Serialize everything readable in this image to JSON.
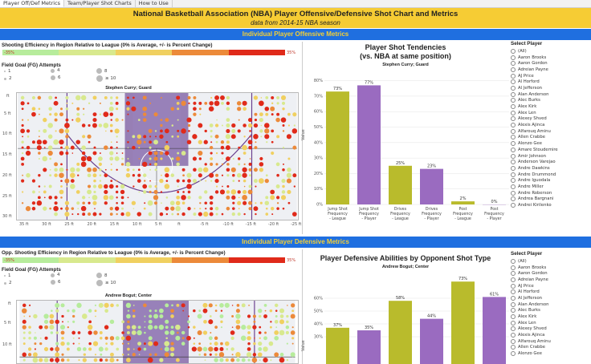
{
  "tabs": [
    {
      "label": "Player Off/Def Metrics",
      "active": true
    },
    {
      "label": "Team/Player Shot Charts",
      "active": false
    },
    {
      "label": "How to Use",
      "active": false
    }
  ],
  "header": {
    "title": "National Basketball Association (NBA) Player Offensive/Defensive Shot Chart and Metrics",
    "subtitle": "data from 2014-15 NBA season"
  },
  "offense": {
    "section_title": "Individual Player Offensive Metrics",
    "scale_title": "Shooting Efficiency in Region Relative to League (0% is Average, +/- is Percent Change)",
    "scale_min": "-35%",
    "scale_max": "35%",
    "attempts_title": "Field Goal (FG) Attempts",
    "attempt_legend": [
      "1",
      "2",
      "4",
      "6",
      "8",
      "≥ 10"
    ],
    "court_title": "Stephen Curry; Guard",
    "court_y_ticks": [
      "ft",
      "5 ft",
      "10 ft",
      "15 ft",
      "20 ft",
      "25 ft",
      "30 ft"
    ],
    "court_x_ticks": [
      "35 ft",
      "30 ft",
      "25 ft",
      "20 ft",
      "15 ft",
      "10 ft",
      "5 ft",
      "ft",
      "-5 ft",
      "-10 ft",
      "-15 ft",
      "-20 ft",
      "-25 ft"
    ],
    "chart_title_line1": "Player Shot Tendencies",
    "chart_title_line2": "(vs. NBA at same position)",
    "chart_subtitle": "Stephen Curry; Guard",
    "chart_ylabel": "Value"
  },
  "defense": {
    "section_title": "Individual Player Defensive Metrics",
    "scale_title": "Opp. Shooting Efficiency in Region Relative to League (0% is Average, +/- is Percent Change)",
    "scale_min": "-35%",
    "scale_max": "35%",
    "attempts_title": "Field Goal (FG) Attempts",
    "attempt_legend": [
      "1",
      "2",
      "4",
      "6",
      "8",
      "≥ 10"
    ],
    "court_title": "Andrew Bogut; Center",
    "court_y_ticks": [
      "ft",
      "5 ft",
      "10 ft"
    ],
    "chart_title": "Player Defensive Abilities by Opponent Shot Type",
    "chart_subtitle": "Andrew Bogut; Center",
    "chart_ylabel": "Value"
  },
  "colors": {
    "title_bg": "#f6cc34",
    "section_bg": "#1f6fe0",
    "section_text": "#f6d033",
    "league_bar": "#b9bb2c",
    "player_bar": "#9a6bc0",
    "scale": [
      "#b7ec9c",
      "#d8e98e",
      "#f0d060",
      "#ec8a3a",
      "#e02a1a"
    ]
  },
  "player_select": {
    "label": "Select Player",
    "options": [
      "(All)",
      "Aaron Brooks",
      "Aaron Gordon",
      "Adreian Payne",
      "AJ Price",
      "Al Horford",
      "Al Jefferson",
      "Alan Anderson",
      "Alec Burks",
      "Alex Kirk",
      "Alex Len",
      "Alexey Shved",
      "Alexis Ajinca",
      "Alfarouq Aminu",
      "Allen Crabbe",
      "Alonzo Gee",
      "Amare Stoudemire",
      "Amir Johnson",
      "Anderson Varejao",
      "Andre Dawkins",
      "Andre Drummond",
      "Andre Iguodala",
      "Andre Miller",
      "Andre Roberson",
      "Andrea Bargnani",
      "Andrei Kirilenko"
    ]
  },
  "chart_data": [
    {
      "type": "bar",
      "title": "Player Shot Tendencies (vs. NBA at same position)",
      "subtitle": "Stephen Curry; Guard",
      "ylabel": "Value",
      "ylim": [
        0,
        0.85
      ],
      "y_ticks": [
        "0%",
        "10%",
        "20%",
        "30%",
        "40%",
        "50%",
        "60%",
        "70%",
        "80%"
      ],
      "categories": [
        "Jump Shot Frequency - League",
        "Jump Shot Frequency - Player",
        "Drives Frequency - League",
        "Drives Frequency - Player",
        "Post Frequency - League",
        "Post Frequency - Player"
      ],
      "values": [
        0.73,
        0.77,
        0.25,
        0.23,
        0.02,
        0.0
      ],
      "labels": [
        "73%",
        "77%",
        "25%",
        "23%",
        "2%",
        "0%"
      ],
      "bar_colors": [
        "#b9bb2c",
        "#9a6bc0",
        "#b9bb2c",
        "#9a6bc0",
        "#b9bb2c",
        "#9a6bc0"
      ]
    },
    {
      "type": "bar",
      "title": "Player Defensive Abilities by Opponent Shot Type",
      "subtitle": "Andrew Bogut; Center",
      "ylabel": "Value",
      "y_ticks": [
        "60%",
        "50%",
        "40%",
        "30%"
      ],
      "values": [
        0.37,
        0.35,
        0.58,
        0.44,
        0.73,
        0.61
      ],
      "labels": [
        "37%",
        "35%",
        "58%",
        "44%",
        "73%",
        "61%"
      ],
      "bar_colors": [
        "#b9bb2c",
        "#9a6bc0",
        "#b9bb2c",
        "#9a6bc0",
        "#b9bb2c",
        "#9a6bc0"
      ]
    }
  ]
}
